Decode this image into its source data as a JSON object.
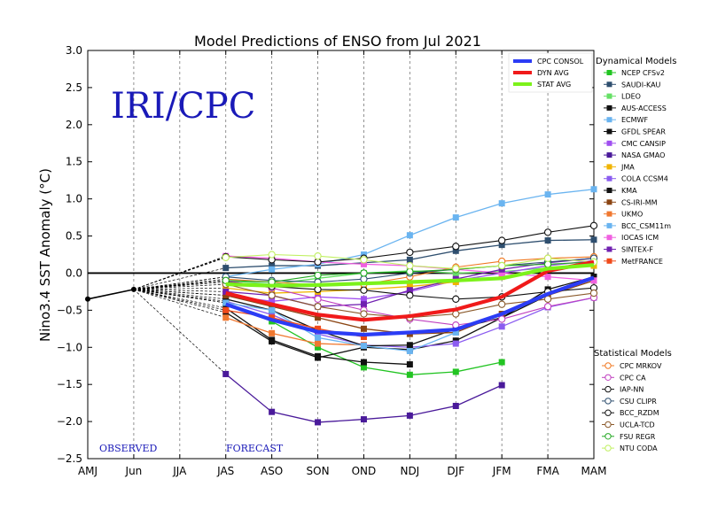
{
  "chart_data": {
    "type": "line",
    "title": "Model Predictions of ENSO from Jul 2021",
    "ylabel": "Nino3.4 SST Anomaly (°C)",
    "xlabel": "",
    "watermark": "IRI/CPC",
    "observed_label": "OBSERVED",
    "forecast_label": "FORECAST",
    "categories": [
      "AMJ",
      "Jun",
      "JJA",
      "JAS",
      "ASO",
      "SON",
      "OND",
      "NDJ",
      "DJF",
      "JFM",
      "FMA",
      "MAM"
    ],
    "ylim": [
      -2.5,
      3.0
    ],
    "yticks": [
      -2.5,
      -2.0,
      -1.5,
      -1.0,
      -0.5,
      0.0,
      0.5,
      1.0,
      1.5,
      2.0,
      2.5,
      3.0
    ],
    "ytick_labels": [
      "−2.5",
      "−2.0",
      "−1.5",
      "−1.0",
      "−0.5",
      "0.0",
      "0.5",
      "1.0",
      "1.5",
      "2.0",
      "2.5",
      "3.0"
    ],
    "grid": "vertical dashed",
    "observed": [
      -0.35,
      -0.22
    ],
    "averages": [
      {
        "name": "CPC CONSOL",
        "color": "#2b3cf5",
        "values": [
          null,
          null,
          null,
          -0.42,
          -0.63,
          -0.79,
          -0.83,
          -0.8,
          -0.76,
          -0.55,
          -0.28,
          -0.06
        ]
      },
      {
        "name": "DYN AVG",
        "color": "#f01a1a",
        "values": [
          null,
          null,
          null,
          -0.27,
          -0.42,
          -0.56,
          -0.63,
          -0.58,
          -0.49,
          -0.32,
          0.03,
          0.15
        ]
      },
      {
        "name": "STAT AVG",
        "color": "#7cf21a",
        "values": [
          null,
          null,
          null,
          -0.15,
          -0.17,
          -0.16,
          -0.14,
          -0.12,
          -0.1,
          -0.07,
          0.06,
          0.11
        ]
      }
    ],
    "dynamical_heading": "Dynamical Models",
    "statistical_heading": "Statistical Models",
    "dynamical": [
      {
        "name": "NCEP CFSv2",
        "color": "#22c422",
        "values": [
          null,
          null,
          null,
          -0.4,
          -0.65,
          -1.0,
          -1.27,
          -1.37,
          -1.33,
          -1.2,
          null,
          null
        ]
      },
      {
        "name": "SAUDI-KAU",
        "color": "#2f4f6f",
        "values": [
          null,
          null,
          null,
          0.07,
          0.1,
          0.1,
          0.14,
          0.18,
          0.3,
          0.38,
          0.44,
          0.45
        ]
      },
      {
        "name": "LDEO",
        "color": "#66e066",
        "values": [
          null,
          null,
          null,
          -0.1,
          -0.15,
          -0.07,
          0.0,
          0.03,
          0.0,
          0.02,
          0.07,
          0.1
        ]
      },
      {
        "name": "AUS-ACCESS",
        "color": "#111111",
        "values": [
          null,
          null,
          null,
          -0.47,
          -0.9,
          -1.12,
          -1.2,
          -1.23,
          null,
          null,
          null,
          null
        ]
      },
      {
        "name": "ECMWF",
        "color": "#6ab4f0",
        "values": [
          null,
          null,
          null,
          -0.05,
          0.05,
          0.12,
          0.25,
          0.51,
          0.75,
          0.94,
          1.06,
          1.13
        ]
      },
      {
        "name": "GFDL SPEAR",
        "color": "#111111",
        "values": [
          null,
          null,
          null,
          -0.53,
          -0.92,
          -1.14,
          -1.0,
          -1.03,
          -0.91,
          -0.6,
          -0.3,
          -0.05
        ]
      },
      {
        "name": "CMC CANSIP",
        "color": "#a04ff0",
        "values": [
          null,
          null,
          null,
          -0.3,
          -0.38,
          -0.32,
          -0.35,
          -0.25,
          -0.1,
          0.0,
          0.1,
          0.17
        ]
      },
      {
        "name": "NASA GMAO",
        "color": "#4a1a9a",
        "values": [
          null,
          null,
          null,
          -1.36,
          -1.87,
          -2.01,
          -1.97,
          -1.92,
          -1.79,
          -1.51,
          null,
          null
        ]
      },
      {
        "name": "JMA",
        "color": "#f0b400",
        "values": [
          null,
          null,
          null,
          -0.2,
          -0.27,
          -0.25,
          -0.22,
          -0.18,
          -0.12,
          -0.05,
          0.05,
          0.1
        ]
      },
      {
        "name": "COLA CCSM4",
        "color": "#8b5cf0",
        "values": [
          null,
          null,
          null,
          -0.38,
          -0.56,
          -0.82,
          -0.97,
          -1.0,
          -0.95,
          -0.72,
          -0.46,
          -0.33
        ]
      },
      {
        "name": "KMA",
        "color": "#111111",
        "values": [
          null,
          null,
          null,
          -0.35,
          -0.5,
          -0.77,
          -0.98,
          -0.97,
          -0.75,
          -0.6,
          -0.22,
          -0.05
        ]
      },
      {
        "name": "CS-IRI-MM",
        "color": "#8b4513",
        "values": [
          null,
          null,
          null,
          -0.3,
          -0.45,
          -0.6,
          -0.75,
          -0.82,
          -0.8,
          -0.55,
          -0.3,
          -0.1
        ]
      },
      {
        "name": "UKMO",
        "color": "#f07830",
        "values": [
          null,
          null,
          null,
          -0.6,
          -0.81,
          -0.95,
          -0.97,
          null,
          null,
          null,
          null,
          null
        ]
      },
      {
        "name": "BCC_CSM11m",
        "color": "#6ab4f0",
        "values": [
          null,
          null,
          null,
          -0.4,
          -0.5,
          -0.87,
          -0.98,
          -1.05,
          -0.8,
          null,
          null,
          null
        ]
      },
      {
        "name": "IOCAS ICM",
        "color": "#f060e0",
        "values": [
          null,
          null,
          null,
          0.23,
          0.2,
          0.15,
          0.12,
          0.1,
          0.05,
          0.0,
          -0.05,
          -0.1
        ]
      },
      {
        "name": "SINTEX-F",
        "color": "#7020b0",
        "values": [
          null,
          null,
          null,
          -0.25,
          -0.3,
          -0.45,
          -0.42,
          -0.23,
          -0.08,
          0.05,
          0.14,
          0.2
        ]
      },
      {
        "name": "MetFRANCE",
        "color": "#f04a1a",
        "values": [
          null,
          null,
          null,
          -0.5,
          -0.6,
          -0.75,
          -0.86,
          null,
          null,
          null,
          null,
          null
        ]
      }
    ],
    "statistical": [
      {
        "name": "CPC MRKOV",
        "color": "#f07820",
        "values": [
          null,
          null,
          null,
          -0.08,
          -0.12,
          -0.16,
          -0.15,
          -0.05,
          0.08,
          0.16,
          0.2,
          0.22
        ]
      },
      {
        "name": "CPC CA",
        "color": "#c040c0",
        "values": [
          null,
          null,
          null,
          -0.1,
          -0.2,
          -0.35,
          -0.5,
          -0.62,
          -0.7,
          -0.62,
          -0.45,
          -0.33
        ]
      },
      {
        "name": "IAP-NN",
        "color": "#111111",
        "values": [
          null,
          null,
          null,
          0.22,
          0.18,
          0.15,
          0.2,
          0.28,
          0.36,
          0.44,
          0.55,
          0.64
        ]
      },
      {
        "name": "CSU CLIPR",
        "color": "#2f4f6f",
        "values": [
          null,
          null,
          null,
          -0.05,
          -0.1,
          -0.12,
          -0.08,
          0.0,
          0.05,
          0.1,
          0.15,
          0.2
        ]
      },
      {
        "name": "BCC_RZDM",
        "color": "#111111",
        "values": [
          null,
          null,
          null,
          -0.12,
          -0.18,
          -0.22,
          -0.23,
          -0.3,
          -0.35,
          -0.32,
          -0.25,
          -0.2
        ]
      },
      {
        "name": "UCLA-TCD",
        "color": "#8b5a2b",
        "values": [
          null,
          null,
          null,
          -0.15,
          -0.3,
          -0.45,
          -0.55,
          -0.6,
          -0.55,
          -0.42,
          -0.35,
          -0.27
        ]
      },
      {
        "name": "FSU REGR",
        "color": "#22a822",
        "values": [
          null,
          null,
          null,
          -0.1,
          -0.12,
          -0.03,
          0.0,
          0.02,
          0.05,
          0.1,
          0.12,
          0.15
        ]
      },
      {
        "name": "NTU CODA",
        "color": "#c0f060",
        "values": [
          null,
          null,
          null,
          0.21,
          0.25,
          0.23,
          0.18,
          0.1,
          0.06,
          0.1,
          0.2,
          0.15
        ]
      }
    ]
  }
}
